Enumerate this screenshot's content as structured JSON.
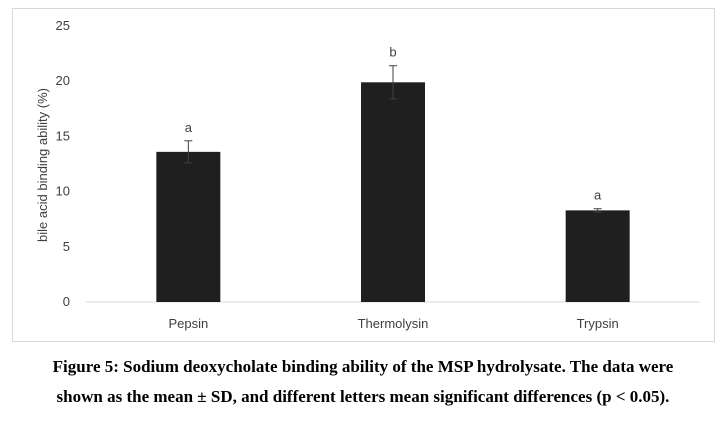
{
  "chart_data": {
    "type": "bar",
    "categories": [
      "Pepsin",
      "Thermolysin",
      "Trypsin"
    ],
    "values": [
      13.6,
      19.9,
      8.3
    ],
    "errors": [
      1.0,
      1.5,
      0.15
    ],
    "significance_letters": [
      "a",
      "b",
      "a"
    ],
    "ylabel": "bile acid binding ability (%)",
    "xlabel": "",
    "ylim": [
      0,
      25
    ],
    "yticks": [
      0,
      5,
      10,
      15,
      20,
      25
    ],
    "grid": false,
    "legend": "none",
    "bar_color": "#1f1f1f"
  },
  "caption": {
    "line1": "Figure 5: Sodium deoxycholate binding ability of the MSP hydrolysate. The data were",
    "line2": "shown as the mean ± SD, and different letters mean significant differences (p < 0.05)."
  }
}
